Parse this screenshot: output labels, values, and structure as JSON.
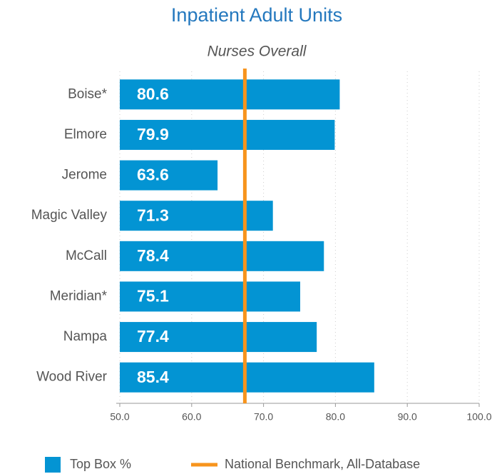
{
  "chart_data": {
    "type": "bar",
    "orientation": "horizontal",
    "title": "Inpatient Adult Units",
    "subtitle": "Nurses Overall",
    "categories": [
      "Boise*",
      "Elmore",
      "Jerome",
      "Magic Valley",
      "McCall",
      "Meridian*",
      "Nampa",
      "Wood River"
    ],
    "series": [
      {
        "name": "Top Box %",
        "color": "#0394d3",
        "values": [
          80.6,
          79.9,
          63.6,
          71.3,
          78.4,
          75.1,
          77.4,
          85.4
        ]
      }
    ],
    "benchmark": {
      "name": "National Benchmark, All-Database",
      "value": 67.4,
      "color": "#f7941d"
    },
    "xlim": [
      50,
      100
    ],
    "xticks": [
      {
        "value": 50,
        "label": "50.0"
      },
      {
        "value": 60,
        "label": "60.0"
      },
      {
        "value": 70,
        "label": "70.0"
      },
      {
        "value": 80,
        "label": "80.0"
      },
      {
        "value": 90,
        "label": "90.0"
      },
      {
        "value": 100,
        "label": "100.0"
      }
    ],
    "grid": true
  }
}
